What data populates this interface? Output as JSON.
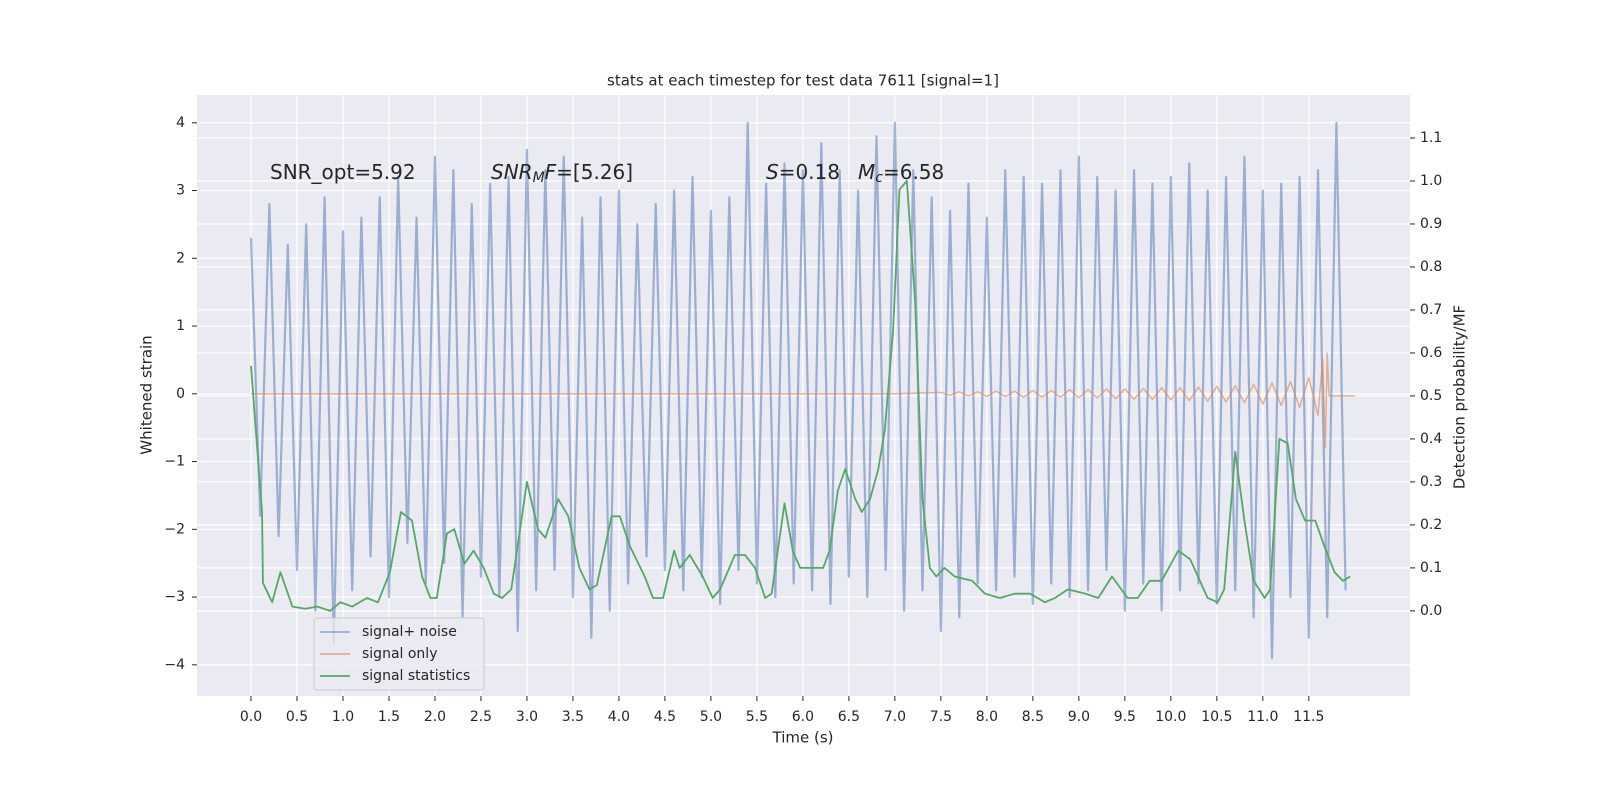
{
  "chart_data": {
    "type": "line",
    "title": "stats at each timestep for test data 7611 [signal=1]",
    "xlabel": "Time (s)",
    "ylabel": "Whitened strain",
    "y2label": "Detection probability/MF",
    "xlim": [
      -0.587,
      12.6
    ],
    "xticks": [
      {
        "value": 0,
        "label": "0.0"
      },
      0.5,
      {
        "value": 1,
        "label": "1.0"
      },
      1.5,
      {
        "value": 2,
        "label": "2.0"
      },
      2.5,
      {
        "value": 3,
        "label": "3.0"
      },
      3.5,
      {
        "value": 4,
        "label": "4.0"
      },
      4.5,
      {
        "value": 5,
        "label": "5.0"
      },
      5.5,
      {
        "value": 6,
        "label": "6.0"
      },
      6.5,
      {
        "value": 7,
        "label": "7.0"
      },
      7.5,
      {
        "value": 8,
        "label": "8.0"
      },
      8.5,
      {
        "value": 9,
        "label": "9.0"
      },
      9.5,
      {
        "value": 10,
        "label": "10.0"
      },
      10.5,
      {
        "value": 11,
        "label": "11.0"
      },
      11.5
    ],
    "ylim": [
      -4.46,
      4.41
    ],
    "yticks": [
      {
        "value": -4,
        "label": "−4"
      },
      {
        "value": -3,
        "label": "−3"
      },
      {
        "value": -2,
        "label": "−2"
      },
      {
        "value": -1,
        "label": "−1"
      },
      0,
      1,
      2,
      3,
      4
    ],
    "y2lim": [
      -0.198,
      1.2
    ],
    "y2ticks": [
      {
        "value": 0,
        "label": "0.0"
      },
      0.1,
      0.2,
      0.3,
      0.4,
      0.5,
      0.6,
      0.7,
      0.8,
      0.9,
      {
        "value": 1,
        "label": "1.0"
      },
      1.1
    ],
    "grid": true,
    "legend_loc": "lower left",
    "annotations": [
      [
        {
          "text": "SNR_opt=5.92"
        }
      ],
      [
        {
          "text": "SNR",
          "italic": true
        },
        {
          "text": "M",
          "italic": true,
          "sub": true
        },
        {
          "text": "F",
          "italic": true
        },
        {
          "text": "=[5.26]"
        }
      ],
      [
        {
          "text": "S",
          "italic": true
        },
        {
          "text": "=0.18"
        }
      ],
      [
        {
          "text": "M",
          "italic": true
        },
        {
          "text": "c",
          "italic": true,
          "sub": true
        },
        {
          "text": "=6.58"
        }
      ]
    ],
    "series": [
      {
        "name": "signal+ noise",
        "color": "#4c72b0",
        "x": [
          0.0,
          0.1,
          0.2,
          0.3,
          0.4,
          0.5,
          0.6,
          0.7,
          0.8,
          0.9,
          1.0,
          1.1,
          1.2,
          1.3,
          1.4,
          1.5,
          1.6,
          1.7,
          1.8,
          1.9,
          2.0,
          2.1,
          2.2,
          2.3,
          2.4,
          2.5,
          2.6,
          2.7,
          2.8,
          2.9,
          3.0,
          3.1,
          3.2,
          3.3,
          3.4,
          3.5,
          3.6,
          3.7,
          3.8,
          3.9,
          4.0,
          4.1,
          4.2,
          4.3,
          4.4,
          4.5,
          4.6,
          4.7,
          4.8,
          4.9,
          5.0,
          5.1,
          5.2,
          5.3,
          5.4,
          5.5,
          5.6,
          5.7,
          5.8,
          5.9,
          6.0,
          6.1,
          6.2,
          6.3,
          6.4,
          6.5,
          6.6,
          6.7,
          6.8,
          6.9,
          7.0,
          7.1,
          7.2,
          7.3,
          7.4,
          7.5,
          7.6,
          7.7,
          7.8,
          7.9,
          8.0,
          8.1,
          8.2,
          8.3,
          8.4,
          8.5,
          8.6,
          8.7,
          8.8,
          8.9,
          9.0,
          9.1,
          9.2,
          9.3,
          9.4,
          9.5,
          9.6,
          9.7,
          9.8,
          9.9,
          10.0,
          10.1,
          10.2,
          10.3,
          10.4,
          10.5,
          10.6,
          10.7,
          10.8,
          10.9,
          11.0,
          11.1,
          11.2,
          11.3,
          11.4,
          11.5,
          11.6,
          11.7,
          11.8,
          11.9
        ],
        "values": [
          2.3,
          -1.8,
          2.8,
          -2.1,
          2.2,
          -2.6,
          2.5,
          -3.2,
          2.9,
          -3.7,
          2.4,
          -2.9,
          2.6,
          -2.4,
          2.9,
          -3.0,
          3.2,
          -2.2,
          2.6,
          -2.8,
          3.5,
          -2.5,
          3.3,
          -3.3,
          2.8,
          -2.7,
          3.1,
          -3.0,
          3.2,
          -3.5,
          3.6,
          -2.9,
          3.3,
          -2.6,
          3.5,
          -3.0,
          2.6,
          -3.6,
          2.9,
          -3.2,
          3.0,
          -2.8,
          2.5,
          -2.4,
          2.8,
          -2.6,
          3.0,
          -2.9,
          3.2,
          -2.7,
          2.7,
          -3.1,
          2.9,
          -2.6,
          4.0,
          -2.8,
          3.1,
          -3.0,
          3.4,
          -2.8,
          3.3,
          -2.9,
          3.7,
          -3.1,
          3.3,
          -2.7,
          3.0,
          -3.0,
          3.8,
          -2.6,
          4.0,
          -3.2,
          3.3,
          -2.9,
          2.9,
          -3.5,
          2.7,
          -3.3,
          3.1,
          -2.8,
          2.6,
          -2.9,
          3.3,
          -2.7,
          3.2,
          -3.1,
          3.1,
          -2.8,
          3.3,
          -3.0,
          3.5,
          -2.9,
          3.2,
          -2.6,
          3.0,
          -3.2,
          3.3,
          -2.8,
          3.1,
          -3.2,
          3.2,
          -2.9,
          3.4,
          -2.8,
          3.0,
          -3.1,
          3.2,
          -2.9,
          3.5,
          -3.3,
          3.0,
          -3.9,
          3.1,
          -3.0,
          3.2,
          -3.6,
          3.3,
          -3.3,
          4.0,
          -2.9
        ]
      },
      {
        "name": "signal only",
        "color": "#dd8452",
        "x": [
          0.0,
          7.0,
          7.5,
          7.6,
          7.7,
          7.8,
          7.9,
          8.0,
          8.1,
          8.2,
          8.3,
          8.4,
          8.5,
          8.6,
          8.7,
          8.8,
          8.9,
          9.0,
          9.1,
          9.2,
          9.3,
          9.4,
          9.5,
          9.6,
          9.7,
          9.8,
          9.9,
          10.0,
          10.1,
          10.2,
          10.3,
          10.4,
          10.5,
          10.6,
          10.7,
          10.8,
          10.9,
          11.0,
          11.1,
          11.2,
          11.3,
          11.4,
          11.5,
          11.6,
          11.65,
          11.68,
          11.7,
          11.72,
          12.0
        ],
        "values": [
          0,
          0,
          0.02,
          -0.02,
          0.03,
          -0.03,
          0.03,
          -0.04,
          0.04,
          -0.04,
          0.04,
          -0.05,
          0.05,
          -0.05,
          0.05,
          -0.05,
          0.06,
          -0.06,
          0.06,
          -0.06,
          0.07,
          -0.07,
          0.07,
          -0.08,
          0.08,
          -0.08,
          0.09,
          -0.09,
          0.09,
          -0.1,
          0.1,
          -0.11,
          0.11,
          -0.12,
          0.12,
          -0.13,
          0.14,
          -0.15,
          0.16,
          -0.17,
          0.18,
          -0.2,
          0.24,
          -0.32,
          0.5,
          -0.8,
          0.6,
          -0.03,
          -0.03
        ]
      },
      {
        "name": "signal statistics",
        "color": "#55a868",
        "axis": "y2",
        "x": [
          0.0,
          0.12,
          0.13,
          0.23,
          0.32,
          0.45,
          0.59,
          0.72,
          0.86,
          0.97,
          1.1,
          1.26,
          1.38,
          1.51,
          1.63,
          1.75,
          1.86,
          1.95,
          2.02,
          2.13,
          2.21,
          2.32,
          2.42,
          2.53,
          2.64,
          2.73,
          2.83,
          3.0,
          3.12,
          3.2,
          3.34,
          3.45,
          3.57,
          3.68,
          3.76,
          3.92,
          4.01,
          4.12,
          4.28,
          4.37,
          4.48,
          4.6,
          4.66,
          4.77,
          4.91,
          5.02,
          5.1,
          5.26,
          5.37,
          5.48,
          5.59,
          5.66,
          5.8,
          5.89,
          5.97,
          6.08,
          6.22,
          6.29,
          6.38,
          6.46,
          6.57,
          6.64,
          6.73,
          6.82,
          6.89,
          6.98,
          7.05,
          7.13,
          7.22,
          7.3,
          7.38,
          7.45,
          7.54,
          7.65,
          7.84,
          7.98,
          8.14,
          8.3,
          8.47,
          8.63,
          8.74,
          8.88,
          9.07,
          9.21,
          9.36,
          9.53,
          9.64,
          9.77,
          9.9,
          10.08,
          10.21,
          10.4,
          10.51,
          10.58,
          10.7,
          10.8,
          10.9,
          11.02,
          11.08,
          11.18,
          11.27,
          11.36,
          11.46,
          11.57,
          11.67,
          11.78,
          11.87,
          11.95
        ],
        "values": [
          0.57,
          0.23,
          0.065,
          0.02,
          0.09,
          0.01,
          0.005,
          0.01,
          0.0,
          0.02,
          0.01,
          0.03,
          0.02,
          0.09,
          0.23,
          0.21,
          0.08,
          0.03,
          0.03,
          0.18,
          0.19,
          0.11,
          0.14,
          0.1,
          0.04,
          0.03,
          0.05,
          0.3,
          0.19,
          0.17,
          0.26,
          0.22,
          0.1,
          0.05,
          0.06,
          0.22,
          0.22,
          0.15,
          0.08,
          0.03,
          0.03,
          0.14,
          0.1,
          0.13,
          0.08,
          0.03,
          0.05,
          0.13,
          0.13,
          0.1,
          0.03,
          0.04,
          0.25,
          0.14,
          0.1,
          0.1,
          0.1,
          0.14,
          0.28,
          0.33,
          0.26,
          0.23,
          0.26,
          0.33,
          0.42,
          0.65,
          0.98,
          1.0,
          0.72,
          0.26,
          0.1,
          0.08,
          0.1,
          0.08,
          0.07,
          0.04,
          0.03,
          0.04,
          0.04,
          0.02,
          0.03,
          0.05,
          0.04,
          0.03,
          0.08,
          0.03,
          0.03,
          0.07,
          0.07,
          0.14,
          0.12,
          0.03,
          0.02,
          0.05,
          0.37,
          0.21,
          0.07,
          0.03,
          0.05,
          0.4,
          0.39,
          0.26,
          0.21,
          0.21,
          0.15,
          0.09,
          0.07,
          0.08
        ]
      }
    ]
  }
}
